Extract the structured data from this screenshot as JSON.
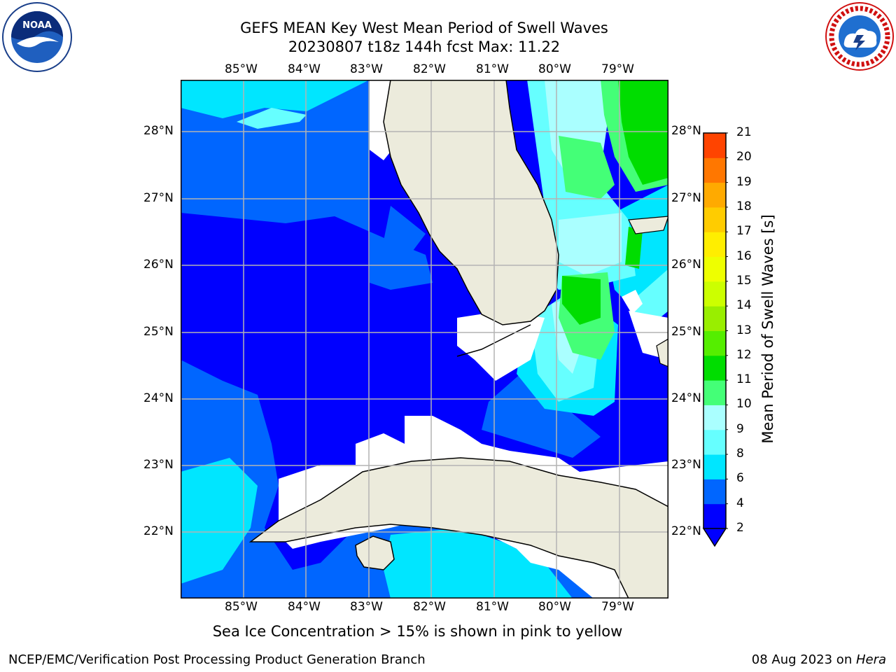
{
  "header": {
    "title_line1": "GEFS MEAN Key West Mean Period of Swell Waves",
    "title_line2": "20230807 t18z 144h fcst   Max: 11.22"
  },
  "logos": {
    "left": {
      "name": "NOAA",
      "ring_text": "NATIONAL OCEANIC AND ATMOSPHERIC ADMINISTRATION · U.S. DEPARTMENT OF COMMERCE"
    },
    "right": {
      "name": "NATIONAL WEATHER SERVICE"
    }
  },
  "map": {
    "lon_labels": [
      "85°W",
      "84°W",
      "83°W",
      "82°W",
      "81°W",
      "80°W",
      "79°W"
    ],
    "lat_labels": [
      "28°N",
      "27°N",
      "26°N",
      "25°N",
      "24°N",
      "23°N",
      "22°N"
    ],
    "colors": {
      "land": "#ecebdc",
      "no_data": "#ffffff",
      "grid": "#b3b3b3",
      "coast": "#000000"
    }
  },
  "colorbar": {
    "label": "Mean Period of Swell Waves [s]",
    "ticks": [
      "2",
      "4",
      "6",
      "8",
      "9",
      "10",
      "11",
      "12",
      "13",
      "14",
      "15",
      "16",
      "17",
      "18",
      "19",
      "20",
      "21"
    ],
    "colors": [
      "#0000ff",
      "#0066ff",
      "#00e6ff",
      "#66ffff",
      "#aaffff",
      "#44ff77",
      "#00dd00",
      "#55ee00",
      "#99ee00",
      "#ccff00",
      "#eeff00",
      "#ffee00",
      "#ffcc00",
      "#ffaa00",
      "#ff7700",
      "#ff4400",
      "#ff1100",
      "#ff0000"
    ],
    "under_color": "#0000ff"
  },
  "footer": {
    "note": "Sea Ice Concentration > 15% is shown in pink to yellow",
    "credit": "NCEP/EMC/Verification Post Processing Product Generation Branch",
    "date_prefix": "08 Aug 2023 on ",
    "date_host": "Hera"
  }
}
